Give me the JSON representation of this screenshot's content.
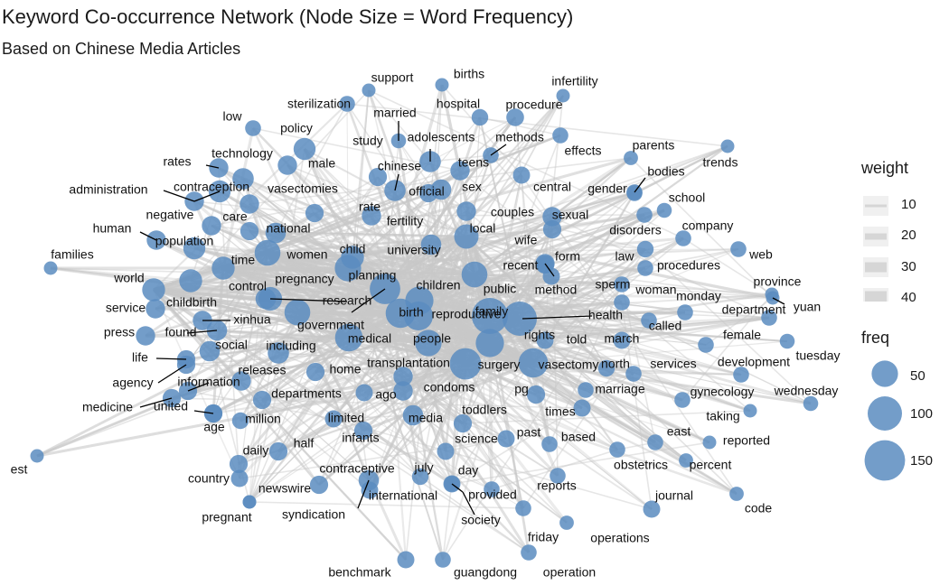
{
  "title": "Keyword Co-occurrence Network (Node Size = Word Frequency)",
  "subtitle": "Based on Chinese Media Articles",
  "legend": {
    "weight_title": "weight",
    "weight_values": [
      "10",
      "20",
      "30",
      "40"
    ],
    "freq_title": "freq",
    "freq_values": [
      "50",
      "100",
      "150"
    ]
  },
  "colors": {
    "node": "#5a8cc0",
    "edge": "#c8c8c8",
    "legend_edge": "#d6d6d6"
  },
  "nodes": [
    {
      "label": "support",
      "f": 8
    },
    {
      "label": "births",
      "f": 8
    },
    {
      "label": "infertility",
      "f": 8
    },
    {
      "label": "low",
      "f": 15
    },
    {
      "label": "sterilization",
      "f": 15
    },
    {
      "label": "policy",
      "f": 45
    },
    {
      "label": "hospital",
      "f": 18
    },
    {
      "label": "procedure",
      "f": 22
    },
    {
      "label": "married",
      "f": 12
    },
    {
      "label": "study",
      "f": 25
    },
    {
      "label": "adolescents",
      "f": 40
    },
    {
      "label": "methods",
      "f": 15
    },
    {
      "label": "effects",
      "f": 15
    },
    {
      "label": "parents",
      "f": 10
    },
    {
      "label": "trends",
      "f": 8
    },
    {
      "label": "technology",
      "f": 40
    },
    {
      "label": "rates",
      "f": 30
    },
    {
      "label": "male",
      "f": 30
    },
    {
      "label": "chinese",
      "f": 40
    },
    {
      "label": "teens",
      "f": 30
    },
    {
      "label": "bodies",
      "f": 15
    },
    {
      "label": "administration",
      "f": 30
    },
    {
      "label": "contraception",
      "f": 45
    },
    {
      "label": "vasectomies",
      "f": 30
    },
    {
      "label": "official",
      "f": 25
    },
    {
      "label": "sex",
      "f": 35
    },
    {
      "label": "central",
      "f": 20
    },
    {
      "label": "gender",
      "f": 15
    },
    {
      "label": "school",
      "f": 12
    },
    {
      "label": "negative",
      "f": 30
    },
    {
      "label": "care",
      "f": 25
    },
    {
      "label": "rate",
      "f": 25
    },
    {
      "label": "fertility",
      "f": 30
    },
    {
      "label": "couples",
      "f": 30
    },
    {
      "label": "sexual",
      "f": 30
    },
    {
      "label": "disorders",
      "f": 15
    },
    {
      "label": "company",
      "f": 15
    },
    {
      "label": "human",
      "f": 30
    },
    {
      "label": "national",
      "f": 35
    },
    {
      "label": "local",
      "f": 60
    },
    {
      "label": "wife",
      "f": 25
    },
    {
      "label": "population",
      "f": 45
    },
    {
      "label": "women",
      "f": 70
    },
    {
      "label": "child",
      "f": 50
    },
    {
      "label": "university",
      "f": 35
    },
    {
      "label": "web",
      "f": 15
    },
    {
      "label": "families",
      "f": 8
    },
    {
      "label": "time",
      "f": 50
    },
    {
      "label": "law",
      "f": 18
    },
    {
      "label": "form",
      "f": 25
    },
    {
      "label": "procedures",
      "f": 15
    },
    {
      "label": "recent",
      "f": 30
    },
    {
      "label": "province",
      "f": 8
    },
    {
      "label": "world",
      "f": 50
    },
    {
      "label": "pregnancy",
      "f": 75
    },
    {
      "label": "planning",
      "f": 110
    },
    {
      "label": "children",
      "f": 90
    },
    {
      "label": "control",
      "f": 35
    },
    {
      "label": "sperm",
      "f": 15
    },
    {
      "label": "woman",
      "f": 15
    },
    {
      "label": "public",
      "f": 70
    },
    {
      "label": "method",
      "f": 20
    },
    {
      "label": "monday",
      "f": 15
    },
    {
      "label": "yuan",
      "f": 8
    },
    {
      "label": "research",
      "f": 55
    },
    {
      "label": "childbirth",
      "f": 50
    },
    {
      "label": "department",
      "f": 15
    },
    {
      "label": "service",
      "f": 30
    },
    {
      "label": "birth",
      "f": 100
    },
    {
      "label": "reproductive",
      "f": 95
    },
    {
      "label": "family",
      "f": 170
    },
    {
      "label": "health",
      "f": 150
    },
    {
      "label": "xinhua",
      "f": 30
    },
    {
      "label": "government",
      "f": 70
    },
    {
      "label": "press",
      "f": 30
    },
    {
      "label": "found",
      "f": 35
    },
    {
      "label": "medical",
      "f": 85
    },
    {
      "label": "people",
      "f": 75
    },
    {
      "label": "rights",
      "f": 90
    },
    {
      "label": "called",
      "f": 15
    },
    {
      "label": "told",
      "f": 20
    },
    {
      "label": "march",
      "f": 20
    },
    {
      "label": "female",
      "f": 15
    },
    {
      "label": "including",
      "f": 40
    },
    {
      "label": "social",
      "f": 35
    },
    {
      "label": "life",
      "f": 25
    },
    {
      "label": "development",
      "f": 15
    },
    {
      "label": "tuesday",
      "f": 12
    },
    {
      "label": "north",
      "f": 18
    },
    {
      "label": "transplantation",
      "f": 30
    },
    {
      "label": "vasectomy",
      "f": 100
    },
    {
      "label": "surgery",
      "f": 120
    },
    {
      "label": "home",
      "f": 25
    },
    {
      "label": "releases",
      "f": 30
    },
    {
      "label": "services",
      "f": 15
    },
    {
      "label": "agency",
      "f": 25
    },
    {
      "label": "information",
      "f": 25
    },
    {
      "label": "ago",
      "f": 20
    },
    {
      "label": "condoms",
      "f": 30
    },
    {
      "label": "pg",
      "f": 25
    },
    {
      "label": "marriage",
      "f": 15
    },
    {
      "label": "gynecology",
      "f": 15
    },
    {
      "label": "wednesday",
      "f": 12
    },
    {
      "label": "departments",
      "f": 25
    },
    {
      "label": "medicine",
      "f": 25
    },
    {
      "label": "united",
      "f": 25
    },
    {
      "label": "million",
      "f": 18
    },
    {
      "label": "limited",
      "f": 20
    },
    {
      "label": "times",
      "f": 20
    },
    {
      "label": "age",
      "f": 25
    },
    {
      "label": "media",
      "f": 35
    },
    {
      "label": "toddlers",
      "f": 25
    },
    {
      "label": "taking",
      "f": 8
    },
    {
      "label": "past",
      "f": 20
    },
    {
      "label": "east",
      "f": 15
    },
    {
      "label": "infants",
      "f": 25
    },
    {
      "label": "science",
      "f": 20
    },
    {
      "label": "based",
      "f": 15
    },
    {
      "label": "half",
      "f": 25
    },
    {
      "label": "reported",
      "f": 8
    },
    {
      "label": "daily",
      "f": 25
    },
    {
      "label": "est",
      "f": 8
    },
    {
      "label": "obstetrics",
      "f": 15
    },
    {
      "label": "percent",
      "f": 10
    },
    {
      "label": "july",
      "f": 18
    },
    {
      "label": "day",
      "f": 15
    },
    {
      "label": "contraceptive",
      "f": 35
    },
    {
      "label": "country",
      "f": 20
    },
    {
      "label": "journal",
      "f": 20
    },
    {
      "label": "reports",
      "f": 15
    },
    {
      "label": "newswire",
      "f": 8
    },
    {
      "label": "provided",
      "f": 15
    },
    {
      "label": "international",
      "f": 20
    },
    {
      "label": "code",
      "f": 10
    },
    {
      "label": "syndication",
      "f": 25
    },
    {
      "label": "society",
      "f": 20
    },
    {
      "label": "pregnant",
      "f": 8
    },
    {
      "label": "friday",
      "f": 15
    },
    {
      "label": "operations",
      "f": 10
    },
    {
      "label": "benchmark",
      "f": 20
    },
    {
      "label": "guangdong",
      "f": 15
    },
    {
      "label": "operation",
      "f": 15
    }
  ]
}
